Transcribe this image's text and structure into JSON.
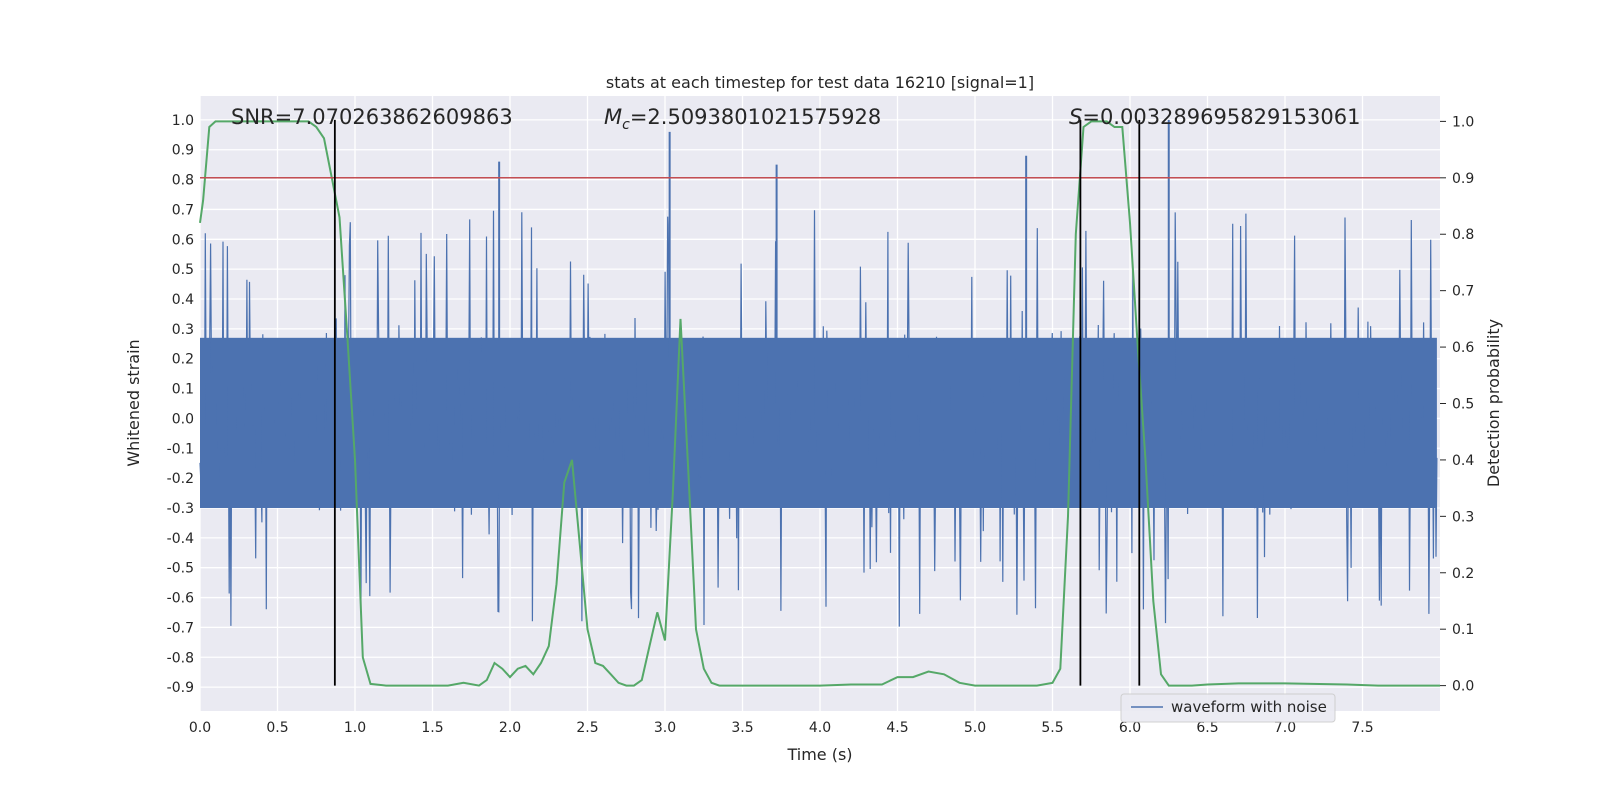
{
  "chart_data": {
    "type": "line",
    "title": "stats at each timestep for test data 16210 [signal=1]",
    "xlabel": "Time (s)",
    "ylabel": "Whitened strain",
    "y2label": "Detection probability",
    "xlim": [
      0,
      8
    ],
    "ylim": [
      -0.98,
      1.08
    ],
    "y2lim": [
      -0.045,
      1.045
    ],
    "xticks": [
      "0.0",
      "0.5",
      "1.0",
      "1.5",
      "2.0",
      "2.5",
      "3.0",
      "3.5",
      "4.0",
      "4.5",
      "5.0",
      "5.5",
      "6.0",
      "6.5",
      "7.0",
      "7.5"
    ],
    "yticks": [
      "-0.9",
      "-0.8",
      "-0.7",
      "-0.6",
      "-0.5",
      "-0.4",
      "-0.3",
      "-0.2",
      "-0.1",
      "0.0",
      "0.1",
      "0.2",
      "0.3",
      "0.4",
      "0.5",
      "0.6",
      "0.7",
      "0.8",
      "0.9",
      "1.0"
    ],
    "y2ticks": [
      "0.0",
      "0.1",
      "0.2",
      "0.3",
      "0.4",
      "0.5",
      "0.6",
      "0.7",
      "0.8",
      "0.9",
      "1.0"
    ],
    "grid": true,
    "background": "#eaeaf2",
    "legend": {
      "position": "lower-right",
      "entries": [
        {
          "label": "waveform with noise",
          "color": "#4c72b0"
        }
      ]
    },
    "annotations": {
      "snr": "SNR=7.070263862609863",
      "mc_symbol": "M",
      "mc_sub": "c",
      "mc_value": "=2.5093801021575928",
      "s_symbol": "S",
      "s_value": "=0.003289695829153061"
    },
    "threshold": {
      "y2": 0.9,
      "color": "#c44e52"
    },
    "vlines": {
      "x": [
        0.87,
        5.68,
        6.06
      ],
      "color": "#000000"
    },
    "series": [
      {
        "name": "waveform with noise",
        "axis": "left",
        "color": "#4c72b0",
        "style": "noise",
        "description_values": {
          "n_points": 1400,
          "core_amplitude": 0.28,
          "typical_peak": 0.55,
          "notable_peaks": [
            [
              1.93,
              0.86
            ],
            [
              3.03,
              0.96
            ],
            [
              3.72,
              0.85
            ],
            [
              5.33,
              0.88
            ],
            [
              6.25,
              1.0
            ]
          ]
        }
      },
      {
        "name": "",
        "axis": "right",
        "color": "#55a868",
        "x": [
          0.0,
          0.02,
          0.06,
          0.1,
          0.2,
          0.3,
          0.4,
          0.5,
          0.6,
          0.7,
          0.75,
          0.8,
          0.85,
          0.9,
          0.95,
          1.0,
          1.05,
          1.1,
          1.2,
          1.3,
          1.5,
          1.6,
          1.7,
          1.8,
          1.85,
          1.9,
          1.95,
          2.0,
          2.05,
          2.1,
          2.15,
          2.2,
          2.25,
          2.3,
          2.35,
          2.4,
          2.45,
          2.5,
          2.55,
          2.6,
          2.65,
          2.7,
          2.75,
          2.8,
          2.85,
          2.9,
          2.95,
          3.0,
          3.05,
          3.1,
          3.15,
          3.2,
          3.25,
          3.3,
          3.35,
          3.4,
          3.45,
          3.5,
          3.55,
          3.6,
          3.7,
          3.8,
          4.0,
          4.2,
          4.4,
          4.5,
          4.6,
          4.7,
          4.8,
          4.9,
          5.0,
          5.2,
          5.4,
          5.5,
          5.55,
          5.6,
          5.65,
          5.7,
          5.75,
          5.8,
          5.85,
          5.9,
          5.95,
          6.0,
          6.05,
          6.1,
          6.15,
          6.2,
          6.25,
          6.3,
          6.35,
          6.4,
          6.5,
          6.7,
          7.0,
          7.4,
          7.6,
          8.0
        ],
        "values": [
          0.82,
          0.86,
          0.99,
          1.0,
          1.0,
          1.0,
          1.0,
          1.0,
          1.0,
          1.0,
          0.99,
          0.97,
          0.9,
          0.83,
          0.62,
          0.4,
          0.05,
          0.003,
          0.0,
          0.0,
          0.0,
          0.0,
          0.005,
          0.0,
          0.01,
          0.04,
          0.03,
          0.015,
          0.03,
          0.035,
          0.02,
          0.04,
          0.07,
          0.18,
          0.36,
          0.4,
          0.25,
          0.1,
          0.04,
          0.035,
          0.02,
          0.005,
          0.0,
          0.0,
          0.01,
          0.07,
          0.13,
          0.08,
          0.34,
          0.65,
          0.38,
          0.1,
          0.03,
          0.005,
          0.0,
          0.0,
          0.0,
          0.0,
          0.0,
          0.0,
          0.0,
          0.0,
          0.0,
          0.002,
          0.002,
          0.015,
          0.015,
          0.025,
          0.02,
          0.005,
          0.0,
          0.0,
          0.0,
          0.005,
          0.03,
          0.3,
          0.8,
          0.99,
          1.0,
          1.0,
          1.0,
          0.99,
          0.99,
          0.82,
          0.6,
          0.4,
          0.15,
          0.02,
          0.0,
          0.0,
          0.0,
          0.0,
          0.002,
          0.004,
          0.004,
          0.002,
          0.0,
          0.0
        ]
      }
    ]
  }
}
